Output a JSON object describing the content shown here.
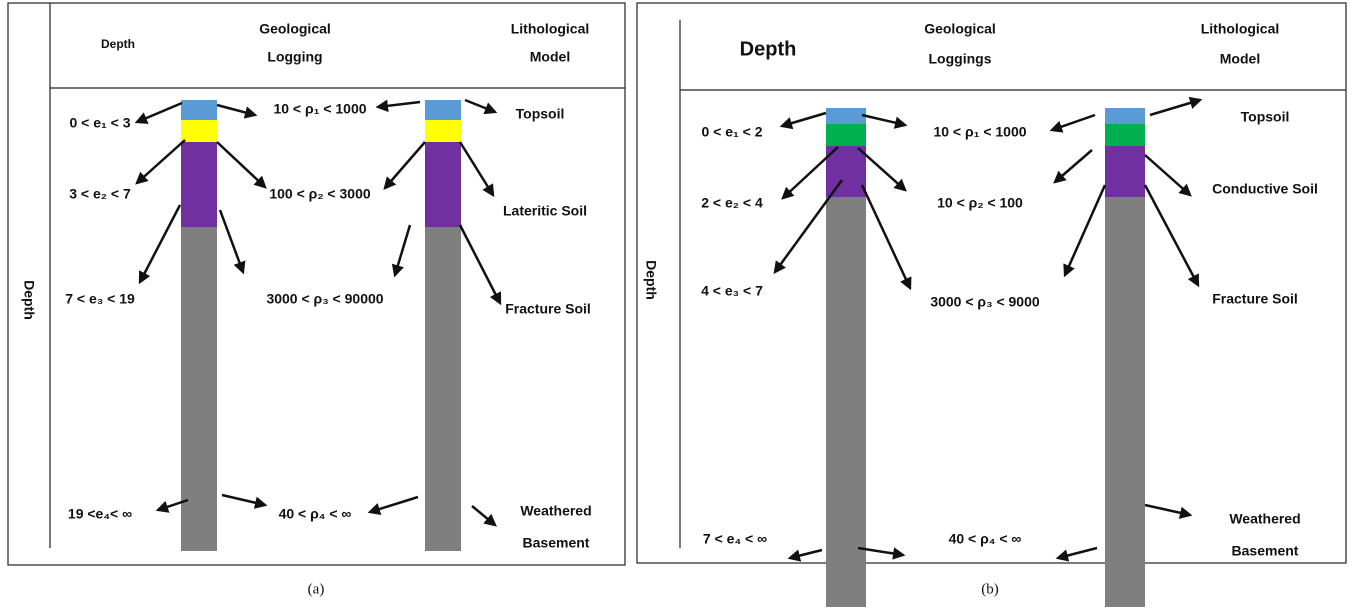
{
  "panels": [
    {
      "caption": "(a)",
      "header": {
        "depth": "Depth",
        "geological_logging": [
          "Geological",
          "Logging"
        ],
        "lithological_model": [
          "Lithological",
          "Model"
        ]
      },
      "depth_axis_label": "Depth",
      "depth_ranges": [
        "0 < e₁ < 3",
        "3 < e₂ < 7",
        "7 < e₃ < 19",
        "19 <e₄< ∞"
      ],
      "resistivity_ranges": [
        "10 < ρ₁ < 1000",
        "100 < ρ₂ < 3000",
        "3000 < ρ₃ < 90000",
        "40 < ρ₄ < ∞"
      ],
      "lithology": [
        [
          "Topsoil"
        ],
        [
          "Lateritic Soil"
        ],
        [
          "Fracture Soil"
        ],
        [
          "Weathered",
          "Basement"
        ]
      ]
    },
    {
      "caption": "(b)",
      "header": {
        "depth": "Depth",
        "geological_logging": [
          "Geological",
          "Loggings"
        ],
        "lithological_model": [
          "Lithological",
          "Model"
        ]
      },
      "depth_axis_label": "Depth",
      "depth_ranges": [
        "0 < e₁ < 2",
        "2 < e₂ < 4",
        "4 < e₃ < 7",
        "7 < e₄ < ∞"
      ],
      "resistivity_ranges": [
        "10 < ρ₁ < 1000",
        "10 < ρ₂ < 100",
        "3000 < ρ₃ < 9000",
        "40 < ρ₄ < ∞"
      ],
      "lithology": [
        [
          "Topsoil"
        ],
        [
          "Conductive Soil"
        ],
        [
          "Fracture Soil"
        ],
        [
          "Weathered",
          "Basement"
        ]
      ]
    }
  ]
}
